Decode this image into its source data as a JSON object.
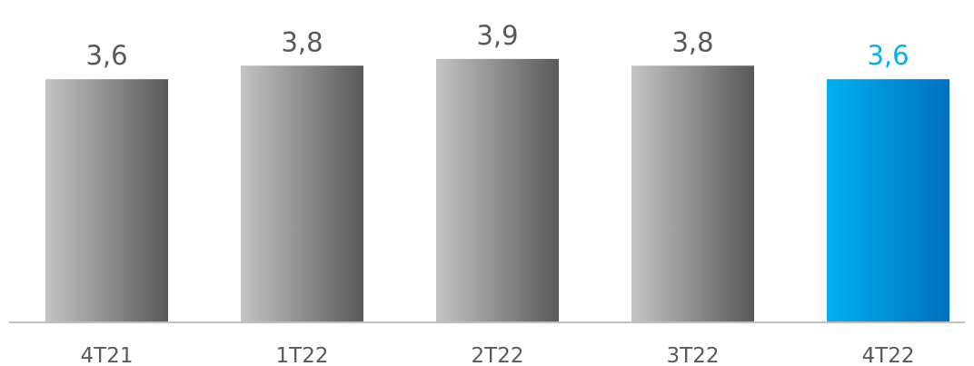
{
  "chart_data": {
    "type": "bar",
    "title": "",
    "xlabel": "",
    "ylabel": "",
    "categories": [
      "4T21",
      "1T22",
      "2T22",
      "3T22",
      "4T22"
    ],
    "values": [
      3.6,
      3.8,
      3.9,
      3.8,
      3.6
    ],
    "value_labels": [
      "3,6",
      "3,8",
      "3,9",
      "3,8",
      "3,6"
    ],
    "highlight_index": 4,
    "ylim": [
      0,
      4.1
    ],
    "grid": false,
    "legend": "none",
    "colors": {
      "bar_gradient_light": "#c4c4c4",
      "bar_gradient_dark": "#595959",
      "highlight_gradient_light": "#00b0f0",
      "highlight_gradient_dark": "#0070c0",
      "label_text": "#595959",
      "highlight_label_text": "#00b0f0",
      "axis_line": "#bfbfbf"
    }
  }
}
